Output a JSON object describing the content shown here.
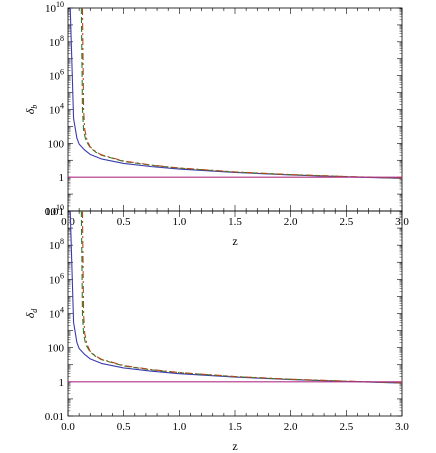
{
  "chart_data": [
    {
      "type": "line",
      "panel": "top",
      "xlabel": "z",
      "ylabel": "δ",
      "ylabel_sub": "b",
      "xlim": [
        0.0,
        3.0
      ],
      "ylim": [
        0.01,
        10000000000
      ],
      "yscale": "log",
      "x_ticks": [
        "0.0",
        "0.5",
        "1.0",
        "1.5",
        "2.0",
        "2.5",
        "3.0"
      ],
      "y_ticks": [
        {
          "base": "0.01",
          "exp": ""
        },
        {
          "base": "1",
          "exp": ""
        },
        {
          "base": "100",
          "exp": ""
        },
        {
          "base": "10",
          "exp": "4"
        },
        {
          "base": "10",
          "exp": "6"
        },
        {
          "base": "10",
          "exp": "8"
        },
        {
          "base": "10",
          "exp": "10"
        }
      ],
      "series": [
        {
          "style": "solid",
          "color": "#3b3bb0",
          "x": [
            0.02,
            0.05,
            0.08,
            0.1,
            0.15,
            0.2,
            0.3,
            0.5,
            0.75,
            1.0,
            1.5,
            2.0,
            2.5,
            3.0
          ],
          "y": [
            10000000000,
            3000,
            200,
            90,
            40,
            22,
            12,
            6.5,
            4.2,
            3.0,
            1.9,
            1.35,
            1.05,
            0.85
          ]
        },
        {
          "style": "dashed",
          "color": "#2e7d2e",
          "x": [
            0.12,
            0.13,
            0.14,
            0.16,
            0.2,
            0.25,
            0.3,
            0.5,
            0.75,
            1.0,
            1.5,
            2.0,
            2.5,
            3.0
          ],
          "y": [
            10000000000,
            10000,
            600,
            150,
            55,
            30,
            20,
            8.5,
            5.0,
            3.4,
            2.0,
            1.4,
            1.08,
            0.87
          ]
        },
        {
          "style": "dashdot",
          "color": "#b34a1a",
          "x": [
            0.13,
            0.14,
            0.15,
            0.17,
            0.2,
            0.25,
            0.3,
            0.5,
            0.75,
            1.0,
            1.5,
            2.0,
            2.5,
            3.0
          ],
          "y": [
            10000000000,
            10000,
            700,
            160,
            60,
            32,
            21,
            9.0,
            5.2,
            3.5,
            2.05,
            1.42,
            1.1,
            0.88
          ]
        },
        {
          "style": "solid",
          "color": "#b0308a",
          "x": [
            0.0,
            3.0
          ],
          "y": [
            1,
            1
          ]
        }
      ]
    },
    {
      "type": "line",
      "panel": "bottom",
      "xlabel": "z",
      "ylabel": "δ",
      "ylabel_sub": "d",
      "xlim": [
        0.0,
        3.0
      ],
      "ylim": [
        0.01,
        10000000000
      ],
      "yscale": "log",
      "x_ticks": [
        "0.0",
        "0.5",
        "1.0",
        "1.5",
        "2.0",
        "2.5",
        "3.0"
      ],
      "y_ticks": [
        {
          "base": "0.01",
          "exp": ""
        },
        {
          "base": "1",
          "exp": ""
        },
        {
          "base": "100",
          "exp": ""
        },
        {
          "base": "10",
          "exp": "4"
        },
        {
          "base": "10",
          "exp": "6"
        },
        {
          "base": "10",
          "exp": "8"
        },
        {
          "base": "10",
          "exp": "10"
        }
      ],
      "series": [
        {
          "style": "solid",
          "color": "#3b3bb0",
          "x": [
            0.02,
            0.05,
            0.08,
            0.1,
            0.15,
            0.2,
            0.3,
            0.5,
            0.75,
            1.0,
            1.5,
            2.0,
            2.5,
            3.0
          ],
          "y": [
            10000000000,
            3000,
            200,
            90,
            40,
            22,
            12,
            6.5,
            4.2,
            3.0,
            1.9,
            1.35,
            1.05,
            0.85
          ]
        },
        {
          "style": "dashed",
          "color": "#2e7d2e",
          "x": [
            0.12,
            0.13,
            0.14,
            0.16,
            0.2,
            0.25,
            0.3,
            0.5,
            0.75,
            1.0,
            1.5,
            2.0,
            2.5,
            3.0
          ],
          "y": [
            10000000000,
            10000,
            600,
            150,
            55,
            30,
            20,
            8.5,
            5.0,
            3.4,
            2.0,
            1.4,
            1.08,
            0.87
          ]
        },
        {
          "style": "dashdot",
          "color": "#b34a1a",
          "x": [
            0.13,
            0.14,
            0.15,
            0.17,
            0.2,
            0.25,
            0.3,
            0.5,
            0.75,
            1.0,
            1.5,
            2.0,
            2.5,
            3.0
          ],
          "y": [
            10000000000,
            10000,
            700,
            160,
            60,
            32,
            21,
            9.0,
            5.2,
            3.5,
            2.05,
            1.42,
            1.1,
            0.88
          ]
        },
        {
          "style": "solid",
          "color": "#b0308a",
          "x": [
            0.0,
            3.0
          ],
          "y": [
            1,
            1
          ]
        }
      ]
    }
  ]
}
